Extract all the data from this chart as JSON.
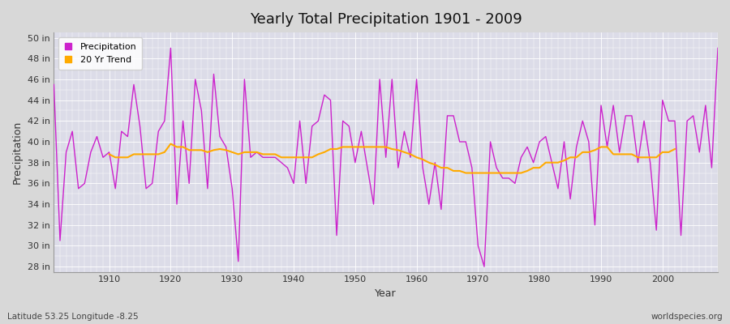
{
  "title": "Yearly Total Precipitation 1901 - 2009",
  "xlabel": "Year",
  "ylabel": "Precipitation",
  "xlim": [
    1901,
    2009
  ],
  "ylim": [
    27.5,
    50.5
  ],
  "yticks": [
    28,
    30,
    32,
    34,
    36,
    38,
    40,
    42,
    44,
    46,
    48,
    50
  ],
  "xticks": [
    1910,
    1920,
    1930,
    1940,
    1950,
    1960,
    1970,
    1980,
    1990,
    2000
  ],
  "precip_color": "#cc22cc",
  "trend_color": "#ffaa00",
  "fig_bg_color": "#d8d8d8",
  "plot_bg_color": "#dcdce8",
  "grid_color": "#ffffff",
  "footer_left": "Latitude 53.25 Longitude -8.25",
  "footer_right": "worldspecies.org",
  "legend_labels": [
    "Precipitation",
    "20 Yr Trend"
  ],
  "years": [
    1901,
    1902,
    1903,
    1904,
    1905,
    1906,
    1907,
    1908,
    1909,
    1910,
    1911,
    1912,
    1913,
    1914,
    1915,
    1916,
    1917,
    1918,
    1919,
    1920,
    1921,
    1922,
    1923,
    1924,
    1925,
    1926,
    1927,
    1928,
    1929,
    1930,
    1931,
    1932,
    1933,
    1934,
    1935,
    1936,
    1937,
    1938,
    1939,
    1940,
    1941,
    1942,
    1943,
    1944,
    1945,
    1946,
    1947,
    1948,
    1949,
    1950,
    1951,
    1952,
    1953,
    1954,
    1955,
    1956,
    1957,
    1958,
    1959,
    1960,
    1961,
    1962,
    1963,
    1964,
    1965,
    1966,
    1967,
    1968,
    1969,
    1970,
    1971,
    1972,
    1973,
    1974,
    1975,
    1976,
    1977,
    1978,
    1979,
    1980,
    1981,
    1982,
    1983,
    1984,
    1985,
    1986,
    1987,
    1988,
    1989,
    1990,
    1991,
    1992,
    1993,
    1994,
    1995,
    1996,
    1997,
    1998,
    1999,
    2000,
    2001,
    2002,
    2003,
    2004,
    2005,
    2006,
    2007,
    2008,
    2009
  ],
  "precip": [
    45.5,
    30.5,
    39.0,
    41.0,
    35.5,
    36.0,
    39.0,
    40.5,
    38.5,
    39.0,
    35.5,
    41.0,
    40.5,
    45.5,
    41.5,
    35.5,
    36.0,
    41.0,
    42.0,
    49.0,
    34.0,
    42.0,
    36.0,
    46.0,
    43.0,
    35.5,
    46.5,
    40.5,
    39.5,
    35.5,
    28.5,
    46.0,
    38.5,
    39.0,
    38.5,
    38.5,
    38.5,
    38.0,
    37.5,
    36.0,
    42.0,
    36.0,
    41.5,
    42.0,
    44.5,
    44.0,
    31.0,
    42.0,
    41.5,
    38.0,
    41.0,
    37.5,
    34.0,
    46.0,
    38.5,
    46.0,
    37.5,
    41.0,
    38.5,
    46.0,
    37.5,
    34.0,
    38.0,
    33.5,
    42.5,
    42.5,
    40.0,
    40.0,
    37.5,
    30.0,
    28.0,
    40.0,
    37.5,
    36.5,
    36.5,
    36.0,
    38.5,
    39.5,
    38.0,
    40.0,
    40.5,
    38.0,
    35.5,
    40.0,
    34.5,
    39.5,
    42.0,
    40.0,
    32.0,
    43.5,
    39.5,
    43.5,
    39.0,
    42.5,
    42.5,
    38.0,
    42.0,
    38.0,
    31.5,
    44.0,
    42.0,
    42.0,
    31.0,
    42.0,
    42.5,
    39.0,
    43.5,
    37.5,
    49.0
  ],
  "trend": [
    null,
    null,
    null,
    null,
    null,
    null,
    null,
    null,
    null,
    38.8,
    38.5,
    38.5,
    38.5,
    38.8,
    38.8,
    38.8,
    38.8,
    38.8,
    39.0,
    39.8,
    39.5,
    39.5,
    39.2,
    39.2,
    39.2,
    39.0,
    39.2,
    39.3,
    39.2,
    39.0,
    38.8,
    39.0,
    39.0,
    39.0,
    38.8,
    38.8,
    38.8,
    38.5,
    38.5,
    38.5,
    38.5,
    38.5,
    38.5,
    38.8,
    39.0,
    39.3,
    39.3,
    39.5,
    39.5,
    39.5,
    39.5,
    39.5,
    39.5,
    39.5,
    39.5,
    39.3,
    39.2,
    39.0,
    38.8,
    38.5,
    38.3,
    38.0,
    37.8,
    37.5,
    37.5,
    37.2,
    37.2,
    37.0,
    37.0,
    37.0,
    37.0,
    37.0,
    37.0,
    37.0,
    37.0,
    37.0,
    37.0,
    37.2,
    37.5,
    37.5,
    38.0,
    38.0,
    38.0,
    38.2,
    38.5,
    38.5,
    39.0,
    39.0,
    39.2,
    39.5,
    39.5,
    38.8,
    38.8,
    38.8,
    38.8,
    38.5,
    38.5,
    38.5,
    38.5,
    39.0,
    39.0,
    39.3,
    null,
    null,
    null,
    null,
    null,
    null,
    null
  ]
}
